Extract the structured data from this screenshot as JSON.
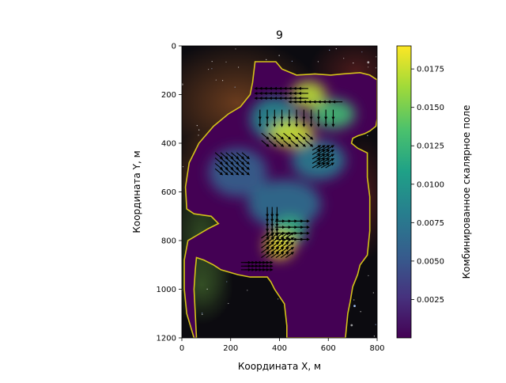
{
  "chart_data": {
    "type": "heatmap",
    "title": "9",
    "xlabel": "Координата X, м",
    "ylabel": "Координата Y, м",
    "xlim": [
      0,
      800
    ],
    "ylim": [
      1200,
      0
    ],
    "x_ticks": [
      0,
      200,
      400,
      600,
      800
    ],
    "y_ticks": [
      0,
      200,
      400,
      600,
      800,
      1000,
      1200
    ],
    "colorbar": {
      "label": "Комбинированное скалярное поле",
      "colormap": "viridis",
      "range": [
        0.0,
        0.019
      ],
      "ticks": [
        0.0025,
        0.005,
        0.0075,
        0.01,
        0.0125,
        0.015,
        0.0175
      ],
      "tick_labels": [
        "0.0025",
        "0.0050",
        "0.0075",
        "0.0100",
        "0.0125",
        "0.0150",
        "0.0175"
      ]
    },
    "background": "star-field nebula image",
    "boundary_color": "#d4c21a",
    "boundary": [
      [
        300,
        65
      ],
      [
        385,
        65
      ],
      [
        410,
        95
      ],
      [
        470,
        120
      ],
      [
        545,
        115
      ],
      [
        610,
        120
      ],
      [
        660,
        115
      ],
      [
        730,
        110
      ],
      [
        770,
        120
      ],
      [
        800,
        140
      ],
      [
        800,
        300
      ],
      [
        795,
        330
      ],
      [
        770,
        350
      ],
      [
        750,
        360
      ],
      [
        720,
        370
      ],
      [
        700,
        380
      ],
      [
        695,
        400
      ],
      [
        720,
        420
      ],
      [
        760,
        440
      ],
      [
        760,
        470
      ],
      [
        760,
        540
      ],
      [
        770,
        620
      ],
      [
        770,
        760
      ],
      [
        760,
        860
      ],
      [
        730,
        900
      ],
      [
        720,
        940
      ],
      [
        700,
        990
      ],
      [
        690,
        1050
      ],
      [
        680,
        1100
      ],
      [
        670,
        1200
      ],
      [
        430,
        1200
      ],
      [
        430,
        1150
      ],
      [
        420,
        1060
      ],
      [
        380,
        1000
      ],
      [
        365,
        970
      ],
      [
        350,
        950
      ],
      [
        280,
        950
      ],
      [
        230,
        940
      ],
      [
        160,
        920
      ],
      [
        130,
        900
      ],
      [
        90,
        880
      ],
      [
        60,
        870
      ],
      [
        55,
        920
      ],
      [
        50,
        1000
      ],
      [
        55,
        1100
      ],
      [
        60,
        1200
      ],
      [
        50,
        1200
      ],
      [
        20,
        1100
      ],
      [
        10,
        1000
      ],
      [
        10,
        880
      ],
      [
        25,
        800
      ],
      [
        110,
        750
      ],
      [
        150,
        730
      ],
      [
        120,
        700
      ],
      [
        50,
        690
      ],
      [
        20,
        670
      ],
      [
        15,
        580
      ],
      [
        30,
        480
      ],
      [
        70,
        400
      ],
      [
        130,
        330
      ],
      [
        190,
        280
      ],
      [
        240,
        250
      ],
      [
        280,
        200
      ],
      [
        290,
        150
      ]
    ],
    "hotspots": [
      {
        "x": 520,
        "y": 200,
        "value": 0.017,
        "rx": 70,
        "ry": 55
      },
      {
        "x": 450,
        "y": 360,
        "value": 0.0175,
        "rx": 90,
        "ry": 55
      },
      {
        "x": 620,
        "y": 280,
        "value": 0.013,
        "rx": 90,
        "ry": 60
      },
      {
        "x": 400,
        "y": 820,
        "value": 0.0185,
        "rx": 60,
        "ry": 55
      },
      {
        "x": 440,
        "y": 760,
        "value": 0.012,
        "rx": 70,
        "ry": 60
      },
      {
        "x": 380,
        "y": 300,
        "value": 0.009,
        "rx": 100,
        "ry": 90
      },
      {
        "x": 560,
        "y": 470,
        "value": 0.008,
        "rx": 110,
        "ry": 80
      },
      {
        "x": 230,
        "y": 520,
        "value": 0.006,
        "rx": 120,
        "ry": 100
      },
      {
        "x": 420,
        "y": 650,
        "value": 0.007,
        "rx": 150,
        "ry": 100
      }
    ],
    "vector_groups": [
      {
        "x": [
          320,
          500
        ],
        "y": [
          175,
          225
        ],
        "step": 20,
        "angle": 180
      },
      {
        "x": [
          460,
          640
        ],
        "y": [
          230,
          230
        ],
        "step": 20,
        "angle": 180
      },
      {
        "x": [
          320,
          620
        ],
        "y": [
          280,
          330
        ],
        "step": 30,
        "angle": -90
      },
      {
        "x": [
          340,
          520
        ],
        "y": [
          370,
          410
        ],
        "step": 30,
        "angle": -40
      },
      {
        "x": [
          550,
          620
        ],
        "y": [
          420,
          500
        ],
        "step": 18,
        "angle": 30
      },
      {
        "x": [
          150,
          260
        ],
        "y": [
          450,
          520
        ],
        "step": 22,
        "angle": -40
      },
      {
        "x": [
          350,
          390
        ],
        "y": [
          680,
          760
        ],
        "step": 20,
        "angle": -90
      },
      {
        "x": [
          400,
          500
        ],
        "y": [
          720,
          800
        ],
        "step": 25,
        "angle": 0
      },
      {
        "x": [
          340,
          440
        ],
        "y": [
          780,
          860
        ],
        "step": 20,
        "angle": 35
      },
      {
        "x": [
          260,
          350
        ],
        "y": [
          890,
          920
        ],
        "step": 15,
        "angle": 0
      }
    ]
  }
}
